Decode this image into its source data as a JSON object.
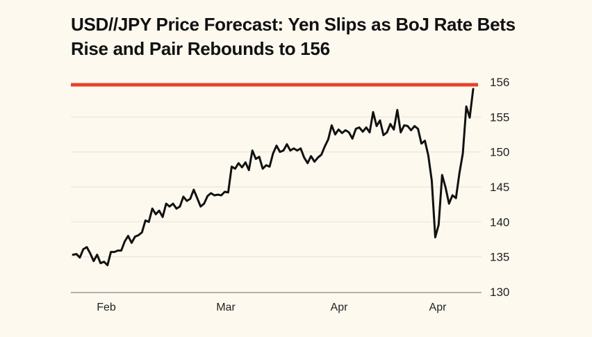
{
  "chart_data": {
    "type": "line",
    "title": "USD//JPY Price Forecast: Yen Slips as BoJ Rate Bets Rise and Pair Rebounds to 156",
    "xlabel": "",
    "ylabel": "",
    "x_tick_labels": [
      "Feb",
      "Mar",
      "Apr",
      "Apr"
    ],
    "y_tick_labels": [
      "156",
      "155",
      "150",
      "145",
      "140",
      "135",
      "130"
    ],
    "y_tick_values": [
      155,
      150,
      145,
      140,
      135,
      130
    ],
    "ylim": [
      130,
      159.6
    ],
    "grid": true,
    "reference_line": {
      "label": "156",
      "color": "#e8412a"
    },
    "line_color": "#111111",
    "series": [
      {
        "values": [
          135.3,
          135.4,
          134.9,
          136.1,
          136.4,
          135.5,
          134.4,
          135.3,
          134.1,
          134.3,
          133.8,
          135.7,
          135.7,
          135.9,
          135.9,
          137.2,
          138.0,
          137.0,
          137.9,
          138.1,
          138.5,
          140.2,
          140.0,
          141.9,
          141.1,
          141.6,
          140.7,
          142.6,
          142.2,
          142.6,
          141.9,
          142.2,
          143.6,
          143.0,
          143.3,
          144.6,
          143.4,
          142.2,
          142.6,
          143.7,
          144.1,
          143.8,
          143.9,
          143.8,
          144.3,
          144.2,
          147.9,
          147.6,
          148.4,
          147.8,
          148.5,
          147.4,
          150.2,
          149.0,
          149.3,
          147.6,
          148.1,
          147.9,
          149.8,
          150.9,
          150.0,
          150.2,
          151.1,
          150.2,
          150.5,
          150.2,
          150.5,
          149.2,
          148.4,
          149.4,
          148.6,
          149.2,
          149.6,
          150.8,
          151.8,
          153.8,
          152.5,
          153.2,
          152.7,
          153.1,
          152.8,
          151.9,
          153.3,
          153.5,
          152.9,
          153.5,
          152.8,
          155.7,
          153.7,
          154.5,
          152.4,
          152.8,
          154.0,
          153.2,
          156.0,
          152.8,
          153.8,
          153.7,
          153.1,
          153.7,
          153.3,
          151.2,
          151.6,
          149.5,
          145.9,
          137.8,
          139.6,
          146.7,
          144.9,
          142.6,
          143.8,
          143.4,
          146.9,
          149.8,
          156.5,
          154.9,
          159.0
        ]
      }
    ]
  }
}
